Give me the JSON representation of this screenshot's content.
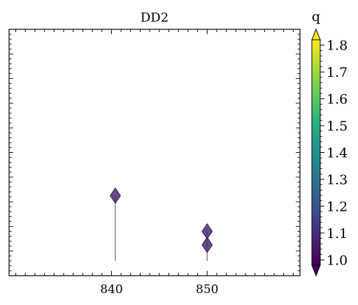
{
  "chart_data": {
    "type": "scatter",
    "title": "DD2",
    "xlabel": "",
    "ylabel": "",
    "xlim": [
      829.3,
      859.7
    ],
    "ylim": [
      0,
      1
    ],
    "x_ticks": [
      840,
      850
    ],
    "y_ticks_labeled": false,
    "grid": false,
    "marker": "diamond",
    "marker_color": "#4a2a6e",
    "stem_color": "#808080",
    "points": [
      {
        "x": 840.4,
        "y_frac": 0.325,
        "stem_base_frac": 0.06,
        "q": 1.04
      },
      {
        "x": 850.0,
        "y_frac": 0.18,
        "stem_base_frac": 0.06,
        "q": 1.04
      },
      {
        "x": 850.0,
        "y_frac": 0.125,
        "stem_base_frac": 0.06,
        "q": 1.04
      }
    ],
    "colorbar": {
      "label": "q",
      "colormap": "viridis",
      "range": [
        0.98,
        1.82
      ],
      "ticks": [
        "1.0",
        "1.1",
        "1.2",
        "1.3",
        "1.4",
        "1.5",
        "1.6",
        "1.7",
        "1.8"
      ],
      "tick_values": [
        1.0,
        1.1,
        1.2,
        1.3,
        1.4,
        1.5,
        1.6,
        1.7,
        1.8
      ],
      "extend": "both"
    }
  }
}
